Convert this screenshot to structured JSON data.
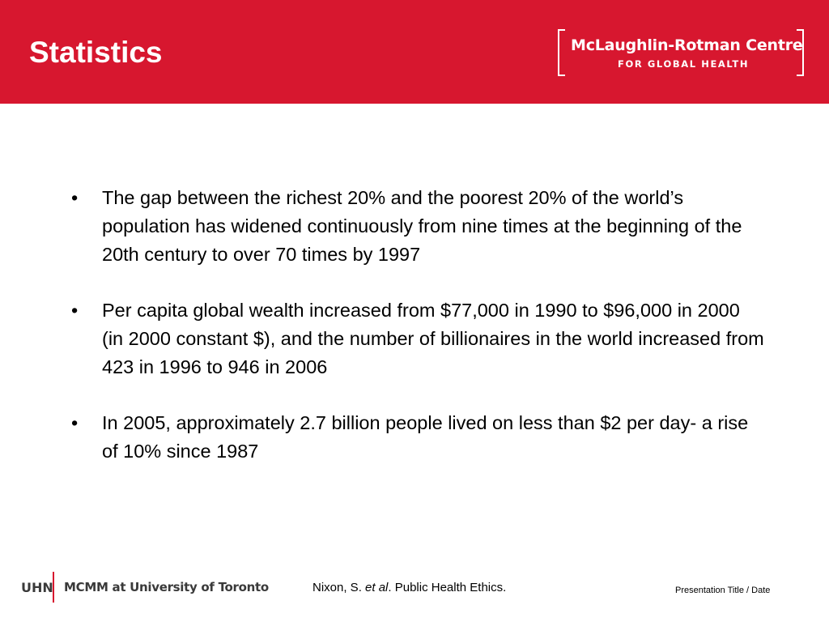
{
  "header": {
    "title": "Statistics",
    "logo": {
      "line1": "McLaughlin-Rotman Centre",
      "line2": "FOR GLOBAL HEALTH"
    },
    "color": "#d7172f"
  },
  "bullets": [
    {
      "marker": "•",
      "text": "The gap between the richest 20% and the poorest 20% of the world’s population has widened continuously from nine times at the beginning of the 20th century to over 70 times by 1997"
    },
    {
      "marker": "•",
      "text": "Per capita global wealth increased from $77,000 in 1990 to $96,000 in 2000 (in 2000 constant $), and the number of billionaires in the world increased from 423 in 1996 to 946 in 2006"
    },
    {
      "marker": "•",
      "text": "In 2005, approximately 2.7 billion people lived on less than $2 per day- a rise of 10% since 1987"
    }
  ],
  "footer": {
    "org_short": "UHN",
    "org_long": "MCMM at University of Toronto",
    "citation": {
      "author": "Nixon, S. ",
      "etal": "et al",
      "rest": ". Public Health Ethics."
    },
    "meta": "Presentation Title / Date"
  }
}
